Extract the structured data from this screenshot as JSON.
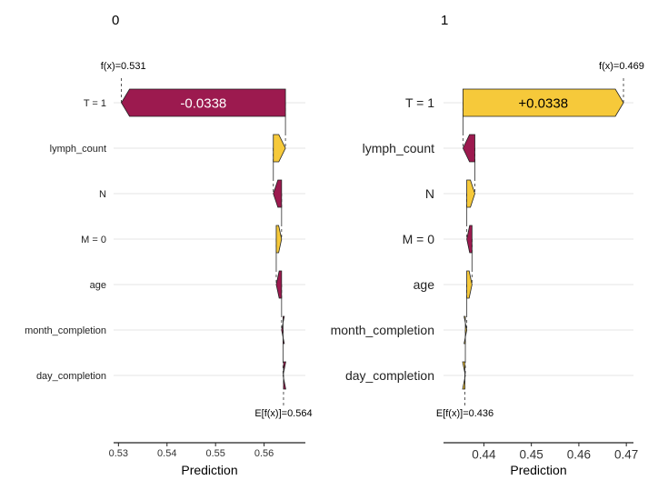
{
  "colors": {
    "negative": "#9c1a4f",
    "positive": "#f6c93a",
    "grid": "#e6e6e6",
    "text": "#222222",
    "axis": "#222222",
    "dash": "#444444"
  },
  "chart_data": [
    {
      "type": "bar",
      "panel": "0",
      "title": "0",
      "xlabel": "Prediction",
      "xlim": [
        0.529,
        0.5685
      ],
      "xticks": [
        0.53,
        0.54,
        0.55,
        0.56
      ],
      "xtick_labels": [
        "0.53",
        "0.54",
        "0.55",
        "0.56"
      ],
      "base_value": 0.564,
      "base_label": "E[f(x)]=0.564",
      "fx_value": 0.531,
      "fx_label": "f(x)=0.531",
      "features": [
        "T = 1",
        "lymph_count",
        "N",
        "M = 0",
        "age",
        "month_completion",
        "day_completion"
      ],
      "contributions": [
        -0.0338,
        0.0025,
        -0.0017,
        0.0011,
        -0.0011,
        -0.0003,
        -0.0001
      ],
      "bar_value_labels": [
        "-0.0338",
        "",
        "",
        "",
        "",
        "",
        ""
      ]
    },
    {
      "type": "bar",
      "panel": "1",
      "title": "1",
      "xlabel": "Prediction",
      "xlim": [
        0.4315,
        0.4715
      ],
      "xticks": [
        0.44,
        0.45,
        0.46,
        0.47
      ],
      "xtick_labels": [
        "0.44",
        "0.45",
        "0.46",
        "0.47"
      ],
      "base_value": 0.436,
      "base_label": "E[f(x)]=0.436",
      "fx_value": 0.469,
      "fx_label": "f(x)=0.469",
      "features": [
        "T = 1",
        "lymph_count",
        "N",
        "M = 0",
        "age",
        "month_completion",
        "day_completion"
      ],
      "contributions": [
        0.0338,
        -0.0025,
        0.0017,
        -0.0011,
        0.0011,
        0.0003,
        0.0001
      ],
      "bar_value_labels": [
        "+0.0338",
        "",
        "",
        "",
        "",
        "",
        ""
      ]
    }
  ]
}
